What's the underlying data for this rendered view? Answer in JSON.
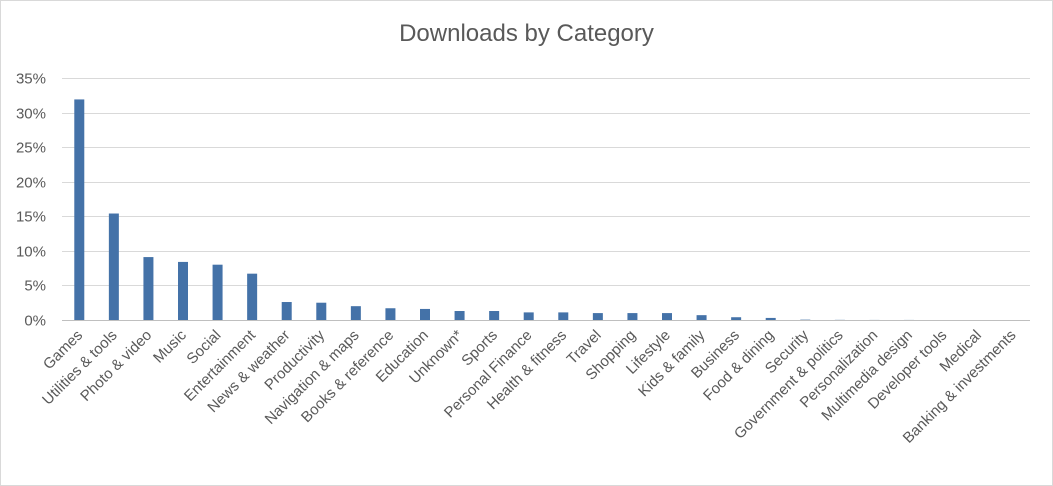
{
  "chart_data": {
    "type": "bar",
    "title": "Downloads by Category",
    "xlabel": "",
    "ylabel": "",
    "ylim": [
      0,
      35
    ],
    "y_ticks": [
      "0%",
      "5%",
      "10%",
      "15%",
      "20%",
      "25%",
      "30%",
      "35%"
    ],
    "grid": true,
    "legend": "none",
    "bar_color": "#4472a8",
    "categories": [
      "Games",
      "Utilities & tools",
      "Photo & video",
      "Music",
      "Social",
      "Entertainment",
      "News & weather",
      "Productivity",
      "Navigation & maps",
      "Books & reference",
      "Education",
      "Unknown*",
      "Sports",
      "Personal Finance",
      "Health & fitness",
      "Travel",
      "Shopping",
      "Lifestyle",
      "Kids & family",
      "Business",
      "Food & dining",
      "Security",
      "Government & politics",
      "Personalization",
      "Multimedia design",
      "Developer tools",
      "Medical",
      "Banking & investments"
    ],
    "values": [
      31.9,
      15.4,
      9.1,
      8.4,
      8.0,
      6.7,
      2.6,
      2.5,
      2.0,
      1.7,
      1.6,
      1.3,
      1.3,
      1.1,
      1.1,
      1.0,
      1.0,
      1.0,
      0.7,
      0.4,
      0.3,
      0.05,
      0.02,
      0.01,
      0.01,
      0.0,
      0.0,
      0.0
    ]
  }
}
